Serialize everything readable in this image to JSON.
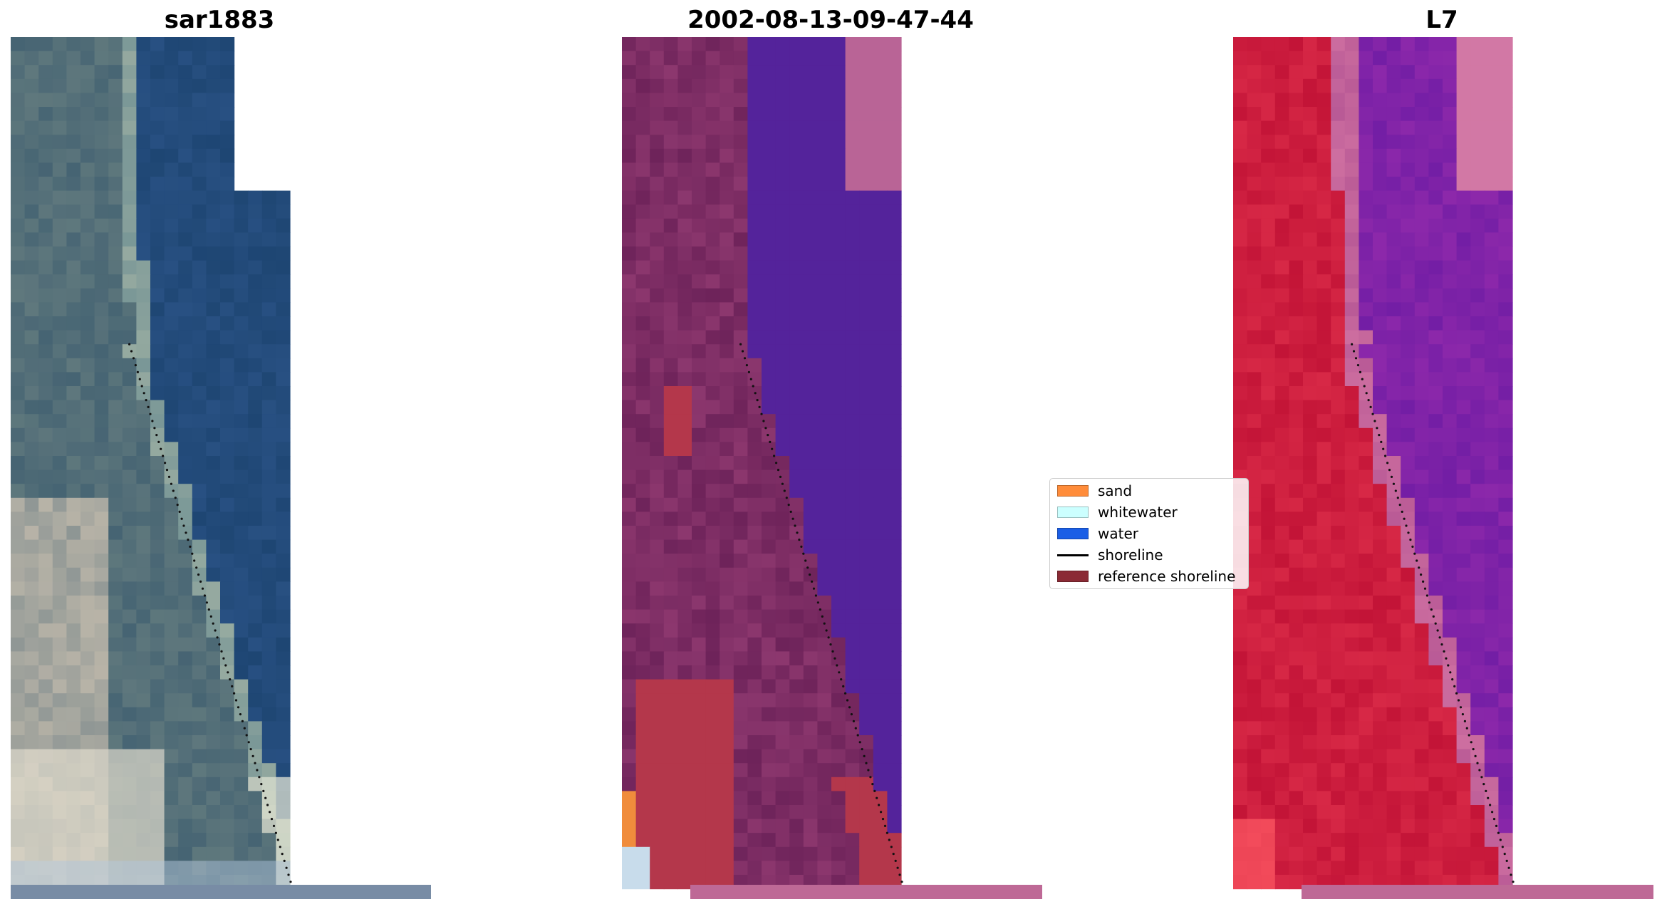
{
  "panels": [
    {
      "title": "sar1883",
      "palette": "rgb"
    },
    {
      "title": "2002-08-13-09-47-44",
      "palette": "classified"
    },
    {
      "title": "L7",
      "palette": "falsecolor"
    }
  ],
  "legend": {
    "items": [
      {
        "label": "sand",
        "color": "#ff8c3a",
        "kind": "patch"
      },
      {
        "label": "whitewater",
        "color": "#ccffff",
        "kind": "patch"
      },
      {
        "label": "water",
        "color": "#1a5ee6",
        "kind": "patch"
      },
      {
        "label": "shoreline",
        "color": "#000000",
        "kind": "line"
      },
      {
        "label": "reference shoreline",
        "color": "#8b2a35",
        "kind": "patch"
      }
    ]
  }
}
